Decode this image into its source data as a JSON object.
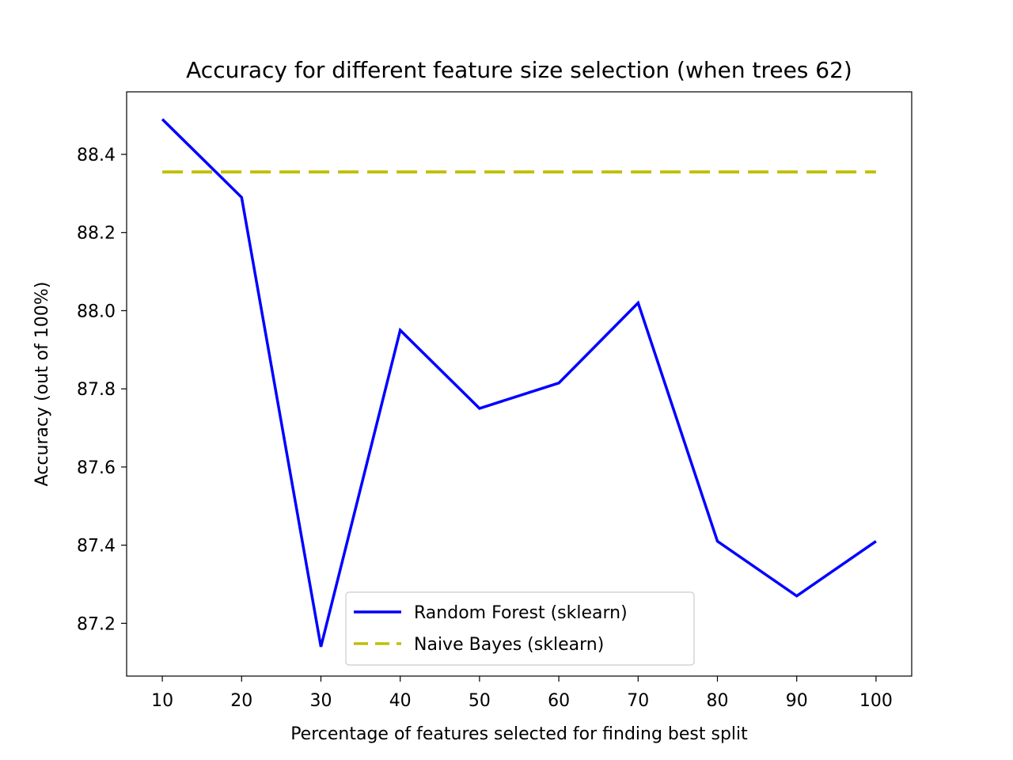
{
  "chart_data": {
    "type": "line",
    "title": "Accuracy for different feature size selection (when trees 62)",
    "xlabel": "Percentage of features selected for finding best split",
    "ylabel": "Accuracy (out of 100%)",
    "x": [
      10,
      20,
      30,
      40,
      50,
      60,
      70,
      80,
      90,
      100
    ],
    "xlim": [
      5.5,
      104.5
    ],
    "ylim": [
      87.065,
      88.56
    ],
    "xticks": [
      10,
      20,
      30,
      40,
      50,
      60,
      70,
      80,
      90,
      100
    ],
    "yticks": [
      87.2,
      87.4,
      87.6,
      87.8,
      88.0,
      88.2,
      88.4
    ],
    "grid": false,
    "legend_position": "lower center",
    "series": [
      {
        "name": "Random Forest (sklearn)",
        "color": "#0000ff",
        "style": "solid",
        "values": [
          88.49,
          88.29,
          87.14,
          87.95,
          87.75,
          87.815,
          88.02,
          87.41,
          87.27,
          87.41
        ]
      },
      {
        "name": "Naive Bayes (sklearn)",
        "color": "#bfbf00",
        "style": "dashed",
        "values": [
          88.355,
          88.355,
          88.355,
          88.355,
          88.355,
          88.355,
          88.355,
          88.355,
          88.355,
          88.355
        ]
      }
    ]
  }
}
